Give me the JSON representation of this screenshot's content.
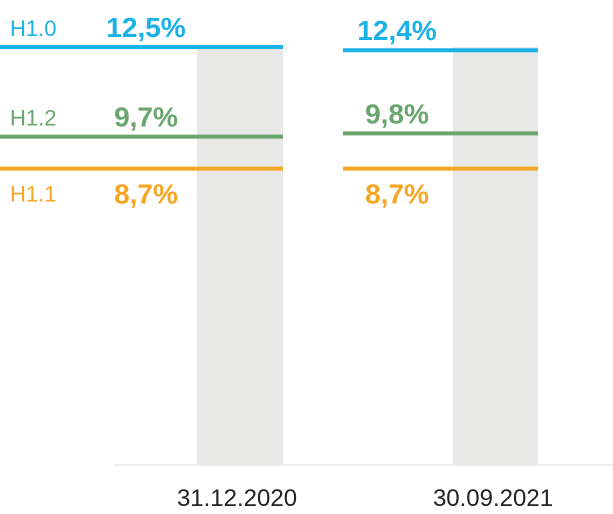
{
  "chart_data": {
    "type": "line",
    "categories": [
      "31.12.2020",
      "30.09.2021"
    ],
    "ylim": [
      0,
      13
    ],
    "series": [
      {
        "name": "H1.0",
        "color": "#1ab1e6",
        "values": [
          12.5,
          12.4
        ],
        "value_labels": [
          "12,5%",
          "12,4%"
        ]
      },
      {
        "name": "H1.2",
        "color": "#6aa56e",
        "values": [
          9.7,
          9.8
        ],
        "value_labels": [
          "9,7%",
          "9,8%"
        ]
      },
      {
        "name": "H1.1",
        "color": "#f5a623",
        "values": [
          8.7,
          8.7
        ],
        "value_labels": [
          "8,7%",
          "8,7%"
        ]
      }
    ]
  }
}
